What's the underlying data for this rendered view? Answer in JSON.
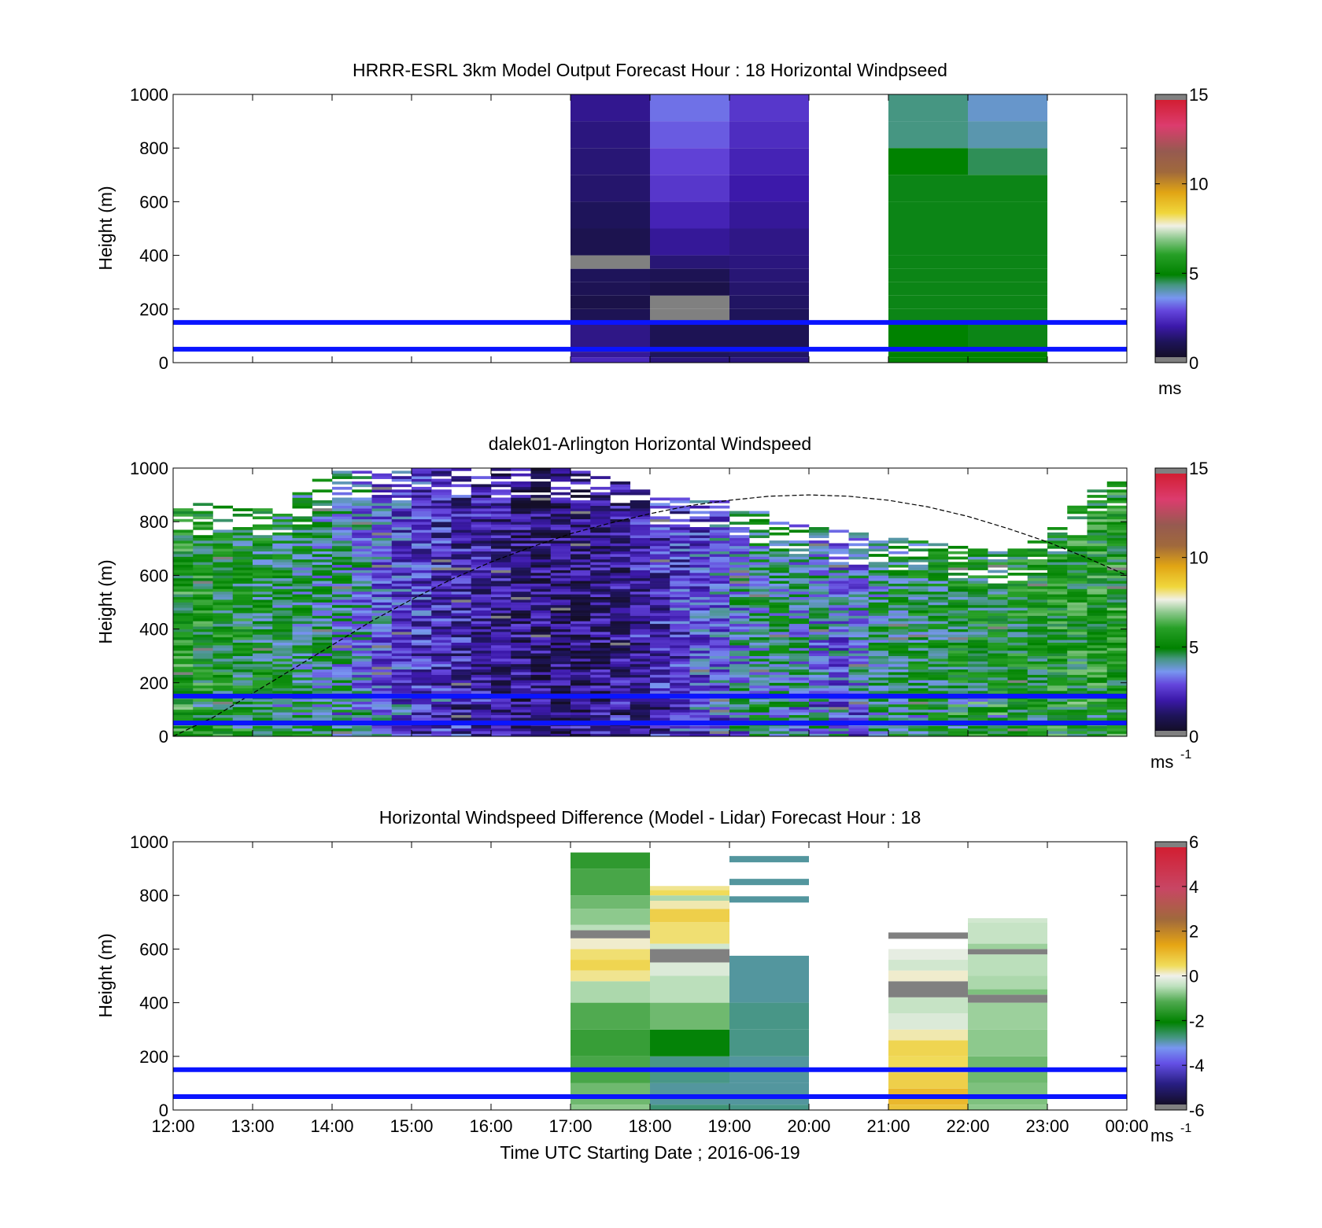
{
  "colors": {
    "background": "#ffffff",
    "reference_lines": "#0a14ff",
    "cbar_missing": "#808080"
  },
  "x_axis": {
    "tick_labels": [
      "12:00",
      "13:00",
      "14:00",
      "15:00",
      "16:00",
      "17:00",
      "18:00",
      "19:00",
      "20:00",
      "21:00",
      "22:00",
      "23:00",
      "00:00"
    ],
    "label": "Time UTC  Starting Date ; 2016-06-19",
    "range_hours": [
      12,
      24
    ]
  },
  "chart_data": [
    {
      "id": "model",
      "type": "heatmap",
      "title": "HRRR-ESRL 3km Model Output   Forecast Hour : 18 Horizontal Windpseed",
      "ylabel": "Height (m)",
      "ylim": [
        0,
        1000
      ],
      "yticks": [
        "0",
        "200",
        "400",
        "600",
        "800",
        "1000"
      ],
      "reference_lines_m": [
        50,
        150
      ],
      "colorbar": {
        "min": 0,
        "max": 15,
        "ticks": [
          "0",
          "5",
          "10",
          "15"
        ],
        "unit": "ms",
        "unit_sup": "",
        "palette": "speed"
      },
      "hourly_columns": [
        {
          "start_h": 17,
          "end_h": 18,
          "levels": [
            [
              20,
              2.1
            ],
            [
              40,
              1.6
            ],
            [
              150,
              1.4
            ],
            [
              200,
              0.8
            ],
            [
              250,
              0.6
            ],
            [
              300,
              0.8
            ],
            [
              350,
              0.9
            ],
            [
              400,
              "NaN"
            ],
            [
              500,
              0.7
            ],
            [
              600,
              0.9
            ],
            [
              700,
              1.1
            ],
            [
              800,
              1.2
            ],
            [
              900,
              1.3
            ],
            [
              1000,
              1.5
            ]
          ]
        },
        {
          "start_h": 18,
          "end_h": 19,
          "levels": [
            [
              20,
              1.3
            ],
            [
              40,
              0.9
            ],
            [
              150,
              0.8
            ],
            [
              200,
              "NaN"
            ],
            [
              250,
              "NaN"
            ],
            [
              300,
              0.6
            ],
            [
              350,
              0.8
            ],
            [
              400,
              1.2
            ],
            [
              500,
              1.6
            ],
            [
              600,
              2.0
            ],
            [
              700,
              2.4
            ],
            [
              800,
              2.6
            ],
            [
              900,
              2.9
            ],
            [
              1000,
              3.1
            ]
          ]
        },
        {
          "start_h": 19,
          "end_h": 20,
          "levels": [
            [
              20,
              1.3
            ],
            [
              40,
              1.0
            ],
            [
              150,
              0.8
            ],
            [
              200,
              0.9
            ],
            [
              250,
              1.0
            ],
            [
              300,
              1.1
            ],
            [
              350,
              1.2
            ],
            [
              400,
              1.3
            ],
            [
              500,
              1.4
            ],
            [
              600,
              1.6
            ],
            [
              700,
              1.8
            ],
            [
              800,
              2.0
            ],
            [
              900,
              2.2
            ],
            [
              1000,
              2.4
            ]
          ]
        },
        {
          "start_h": 21,
          "end_h": 22,
          "levels": [
            [
              20,
              4.9
            ],
            [
              40,
              4.8
            ],
            [
              150,
              4.8
            ],
            [
              200,
              4.7
            ],
            [
              250,
              4.7
            ],
            [
              300,
              4.7
            ],
            [
              350,
              4.7
            ],
            [
              400,
              4.7
            ],
            [
              500,
              4.7
            ],
            [
              600,
              4.7
            ],
            [
              700,
              4.7
            ],
            [
              800,
              4.8
            ],
            [
              900,
              4.2
            ],
            [
              1000,
              4.2
            ]
          ]
        },
        {
          "start_h": 22,
          "end_h": 23,
          "levels": [
            [
              20,
              4.8
            ],
            [
              40,
              4.8
            ],
            [
              150,
              4.7
            ],
            [
              200,
              4.7
            ],
            [
              250,
              4.7
            ],
            [
              300,
              4.7
            ],
            [
              350,
              4.7
            ],
            [
              400,
              4.7
            ],
            [
              500,
              4.7
            ],
            [
              600,
              4.7
            ],
            [
              700,
              4.7
            ],
            [
              800,
              4.4
            ],
            [
              900,
              3.9
            ],
            [
              1000,
              3.7
            ]
          ]
        }
      ]
    },
    {
      "id": "lidar",
      "type": "heatmap",
      "title": "dalek01-Arlington  Horizontal Windspeed",
      "ylabel": "Height (m)",
      "ylim": [
        0,
        1000
      ],
      "yticks": [
        "0",
        "200",
        "400",
        "600",
        "800",
        "1000"
      ],
      "reference_lines_m": [
        50,
        150
      ],
      "colorbar": {
        "min": 0,
        "max": 15,
        "ticks": [
          "0",
          "5",
          "10",
          "15"
        ],
        "unit": "ms",
        "unit_sup": "-1",
        "palette": "speed"
      },
      "time_step_h": 0.25,
      "height_step_m": 10,
      "max_height_m": 1000,
      "speed_profile_ms": [
        [
          12.0,
          5.5
        ],
        [
          12.5,
          5.2
        ],
        [
          13.0,
          4.9
        ],
        [
          13.5,
          4.5
        ],
        [
          14.0,
          4.0
        ],
        [
          14.5,
          3.2
        ],
        [
          15.0,
          2.5
        ],
        [
          15.5,
          2.0
        ],
        [
          16.0,
          1.6
        ],
        [
          16.5,
          1.3
        ],
        [
          17.0,
          1.2
        ],
        [
          17.5,
          1.4
        ],
        [
          18.0,
          2.0
        ],
        [
          18.5,
          2.5
        ],
        [
          19.0,
          3.2
        ],
        [
          19.5,
          4.3
        ],
        [
          20.0,
          3.6
        ],
        [
          20.5,
          3.0
        ],
        [
          21.0,
          4.6
        ],
        [
          21.5,
          4.7
        ],
        [
          22.0,
          4.9
        ],
        [
          22.5,
          5.0
        ],
        [
          23.0,
          5.2
        ],
        [
          23.5,
          5.4
        ],
        [
          24.0,
          5.4
        ]
      ],
      "data_top_m": [
        [
          12.0,
          880
        ],
        [
          12.5,
          860
        ],
        [
          13.0,
          840
        ],
        [
          13.5,
          880
        ],
        [
          14.0,
          980
        ],
        [
          15.0,
          1000
        ],
        [
          17.0,
          1000
        ],
        [
          17.5,
          960
        ],
        [
          18.0,
          900
        ],
        [
          18.5,
          880
        ],
        [
          19.0,
          880
        ],
        [
          19.5,
          820
        ],
        [
          20.0,
          780
        ],
        [
          20.5,
          760
        ],
        [
          21.0,
          740
        ],
        [
          21.5,
          720
        ],
        [
          22.0,
          700
        ],
        [
          22.5,
          680
        ],
        [
          23.0,
          740
        ],
        [
          23.5,
          900
        ],
        [
          24.0,
          980
        ]
      ],
      "boundary_layer_curve_m": [
        [
          12.0,
          0
        ],
        [
          12.5,
          70
        ],
        [
          13.0,
          160
        ],
        [
          13.5,
          250
        ],
        [
          14.0,
          340
        ],
        [
          14.5,
          430
        ],
        [
          15.0,
          510
        ],
        [
          15.5,
          585
        ],
        [
          16.0,
          650
        ],
        [
          16.5,
          705
        ],
        [
          17.0,
          755
        ],
        [
          17.5,
          795
        ],
        [
          18.0,
          830
        ],
        [
          18.5,
          860
        ],
        [
          19.0,
          880
        ],
        [
          19.5,
          895
        ],
        [
          20.0,
          900
        ],
        [
          20.5,
          895
        ],
        [
          21.0,
          880
        ],
        [
          21.5,
          855
        ],
        [
          22.0,
          820
        ],
        [
          22.5,
          775
        ],
        [
          23.0,
          725
        ],
        [
          23.5,
          665
        ],
        [
          24.0,
          600
        ]
      ]
    },
    {
      "id": "difference",
      "type": "heatmap",
      "title": "Horizontal Windspeed Difference (Model - Lidar) Forecast Hour : 18",
      "ylabel": "Height (m)",
      "ylim": [
        0,
        1000
      ],
      "yticks": [
        "0",
        "200",
        "400",
        "600",
        "800",
        "1000"
      ],
      "reference_lines_m": [
        50,
        150
      ],
      "colorbar": {
        "min": -6,
        "max": 6,
        "ticks": [
          "-6",
          "-4",
          "-2",
          "0",
          "2",
          "4",
          "6"
        ],
        "unit": "ms",
        "unit_sup": "-1",
        "palette": "diff"
      },
      "hourly_columns": [
        {
          "start_h": 17,
          "end_h": 18,
          "levels": [
            [
              20,
              -0.8
            ],
            [
              100,
              -1.0
            ],
            [
              200,
              -1.3
            ],
            [
              300,
              -1.5
            ],
            [
              400,
              -1.2
            ],
            [
              480,
              -0.6
            ],
            [
              520,
              0.3
            ],
            [
              560,
              0.6
            ],
            [
              600,
              0.4
            ],
            [
              640,
              0.1
            ],
            [
              670,
              "NaN"
            ],
            [
              690,
              -0.5
            ],
            [
              750,
              -0.8
            ],
            [
              800,
              -1.0
            ],
            [
              900,
              -1.3
            ],
            [
              960,
              -1.6
            ]
          ]
        },
        {
          "start_h": 18,
          "end_h": 19,
          "levels": [
            [
              20,
              -2.8
            ],
            [
              100,
              -3.0
            ],
            [
              200,
              -2.9
            ],
            [
              300,
              -2.2
            ],
            [
              400,
              -1.0
            ],
            [
              500,
              -0.5
            ],
            [
              550,
              -0.2
            ],
            [
              600,
              "NaN"
            ],
            [
              620,
              -0.3
            ],
            [
              700,
              0.4
            ],
            [
              750,
              0.7
            ],
            [
              780,
              0.2
            ],
            [
              800,
              -0.6
            ],
            [
              820,
              0.5
            ],
            [
              835,
              0.3
            ]
          ]
        },
        {
          "start_h": 19,
          "end_h": 20,
          "levels": [
            [
              20,
              -2.9
            ],
            [
              100,
              -3.0
            ],
            [
              200,
              -3.0
            ],
            [
              300,
              -2.9
            ],
            [
              400,
              -2.9
            ],
            [
              500,
              -3.0
            ],
            [
              575,
              -3.0
            ]
          ]
        },
        {
          "start_h": 21,
          "end_h": 22,
          "levels": [
            [
              20,
              0.9
            ],
            [
              80,
              1.1
            ],
            [
              140,
              0.7
            ],
            [
              200,
              0.5
            ],
            [
              260,
              0.6
            ],
            [
              300,
              0.2
            ],
            [
              360,
              -0.2
            ],
            [
              420,
              -0.4
            ],
            [
              480,
              "NaN"
            ],
            [
              520,
              0.1
            ],
            [
              560,
              -0.3
            ],
            [
              600,
              -0.1
            ]
          ]
        },
        {
          "start_h": 22,
          "end_h": 23,
          "levels": [
            [
              20,
              -0.8
            ],
            [
              100,
              -0.9
            ],
            [
              200,
              -1.0
            ],
            [
              300,
              -0.8
            ],
            [
              400,
              -0.7
            ],
            [
              430,
              "NaN"
            ],
            [
              450,
              -0.9
            ],
            [
              500,
              -0.6
            ],
            [
              580,
              -0.5
            ],
            [
              600,
              "NaN"
            ],
            [
              620,
              -0.7
            ],
            [
              700,
              -0.4
            ],
            [
              715,
              -0.3
            ]
          ]
        }
      ],
      "isolated_bars": [
        {
          "start_h": 19,
          "end_h": 20,
          "height_m": 785,
          "value": -3.0
        },
        {
          "start_h": 19,
          "end_h": 20,
          "height_m": 850,
          "value": -3.0
        },
        {
          "start_h": 19,
          "end_h": 20,
          "height_m": 935,
          "value": -3.0
        },
        {
          "start_h": 21,
          "end_h": 22,
          "height_m": 650,
          "value": "NaN"
        }
      ]
    }
  ]
}
